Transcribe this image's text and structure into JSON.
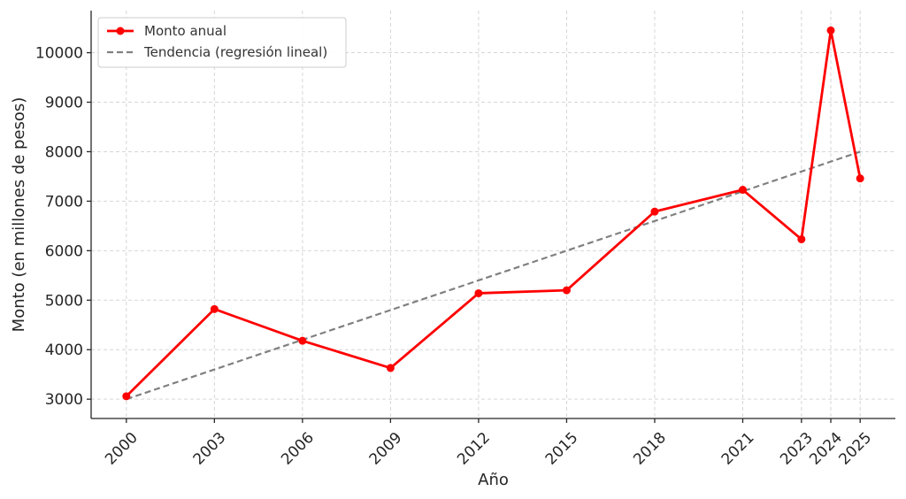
{
  "chart_data": {
    "type": "line",
    "xlabel": "Año",
    "ylabel": "Monto (en millones de pesos)",
    "categories": [
      "2000",
      "2003",
      "2006",
      "2009",
      "2012",
      "2015",
      "2018",
      "2021",
      "2023",
      "2024",
      "2025"
    ],
    "x": [
      2000,
      2003,
      2006,
      2009,
      2012,
      2015,
      2018,
      2021,
      2023,
      2024,
      2025
    ],
    "xlim": [
      1998.8,
      2026.2
    ],
    "ylim": [
      2610,
      10850
    ],
    "yticks": [
      3000,
      4000,
      5000,
      6000,
      7000,
      8000,
      9000,
      10000
    ],
    "grid": true,
    "legend_position": "top-left",
    "series": [
      {
        "name": "Monto anual",
        "style": "solid-markers",
        "color": "#ff0000",
        "values": [
          3060,
          4820,
          4180,
          3630,
          5140,
          5200,
          6790,
          7230,
          6230,
          10450,
          7460
        ]
      },
      {
        "name": "Tendencia (regresión lineal)",
        "style": "dashed",
        "color": "#808080",
        "x": [
          2000,
          2025
        ],
        "values": [
          3000,
          8000
        ]
      }
    ]
  }
}
